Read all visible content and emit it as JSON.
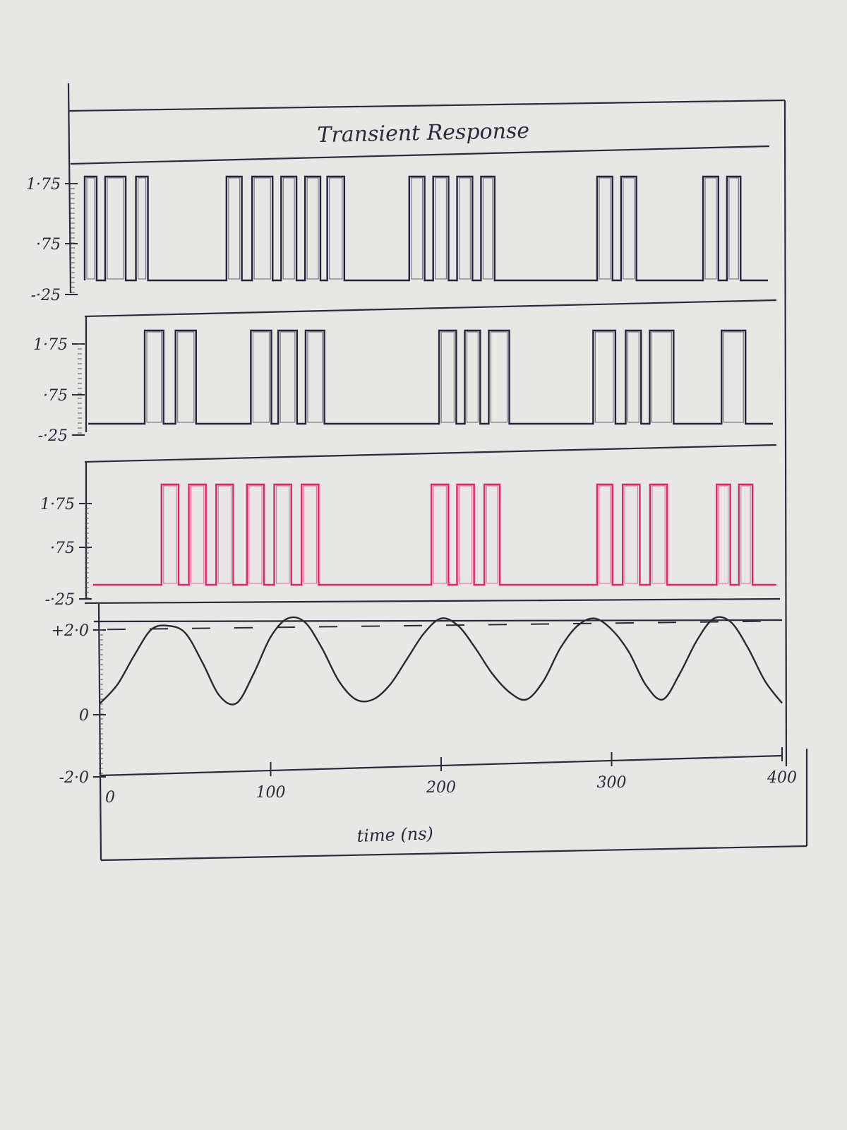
{
  "chart_data": [
    {
      "type": "line",
      "title": "Transient Response",
      "xlabel": "time (ns)",
      "xlim": [
        0,
        400
      ],
      "x_ticks": [
        "0",
        "100",
        "200",
        "300",
        "400"
      ],
      "panels": [
        {
          "kind": "digital",
          "color": "#23233a",
          "ylim": [
            -0.25,
            1.75
          ],
          "y_ticks": [
            "1·75",
            "·75",
            "-·25"
          ],
          "high": 1.75,
          "low": -0.25,
          "pulses_ns": [
            [
              0,
              7
            ],
            [
              12,
              24
            ],
            [
              30,
              37
            ],
            [
              83,
              92
            ],
            [
              98,
              110
            ],
            [
              115,
              124
            ],
            [
              129,
              138
            ],
            [
              142,
              152
            ],
            [
              190,
              199
            ],
            [
              204,
              213
            ],
            [
              218,
              227
            ],
            [
              232,
              240
            ],
            [
              300,
              309
            ],
            [
              314,
              323
            ],
            [
              362,
              371
            ],
            [
              376,
              384
            ]
          ]
        },
        {
          "kind": "digital",
          "color": "#23233a",
          "ylim": [
            -0.25,
            1.75
          ],
          "y_ticks": [
            "1·75",
            "·75",
            "-·25"
          ],
          "high": 1.75,
          "low": -0.25,
          "pulses_ns": [
            [
              33,
              44
            ],
            [
              51,
              63
            ],
            [
              95,
              107
            ],
            [
              111,
              122
            ],
            [
              127,
              138
            ],
            [
              205,
              215
            ],
            [
              220,
              229
            ],
            [
              234,
              246
            ],
            [
              295,
              308
            ],
            [
              314,
              323
            ],
            [
              328,
              342
            ],
            [
              370,
              384
            ]
          ]
        },
        {
          "kind": "digital",
          "color": "#e8206a",
          "ylim": [
            -0.25,
            1.75
          ],
          "y_ticks": [
            "1·75",
            "·75",
            "-·25"
          ],
          "high": 1.75,
          "low": -0.25,
          "pulses_ns": [
            [
              40,
              50
            ],
            [
              56,
              66
            ],
            [
              72,
              82
            ],
            [
              90,
              100
            ],
            [
              106,
              116
            ],
            [
              122,
              132
            ],
            [
              198,
              208
            ],
            [
              213,
              223
            ],
            [
              229,
              238
            ],
            [
              295,
              304
            ],
            [
              310,
              320
            ],
            [
              326,
              336
            ],
            [
              365,
              373
            ],
            [
              378,
              386
            ]
          ]
        },
        {
          "kind": "analog",
          "color": "#2a2a2a",
          "ylim": [
            -2.0,
            2.6
          ],
          "y_ticks": [
            "+2·0",
            "0",
            "-2·0"
          ],
          "threshold": 2.0,
          "x": [
            0,
            10,
            20,
            30,
            40,
            50,
            60,
            70,
            80,
            90,
            100,
            110,
            120,
            130,
            140,
            150,
            160,
            170,
            180,
            190,
            200,
            210,
            220,
            230,
            240,
            250,
            260,
            270,
            280,
            290,
            300,
            310,
            320,
            330,
            340,
            350,
            360,
            370,
            380,
            390,
            400
          ],
          "y": [
            0.0,
            0.5,
            1.3,
            2.0,
            2.1,
            1.9,
            1.1,
            0.2,
            0.0,
            0.8,
            1.8,
            2.3,
            2.2,
            1.5,
            0.6,
            0.1,
            0.1,
            0.5,
            1.2,
            1.9,
            2.3,
            2.1,
            1.5,
            0.8,
            0.3,
            0.1,
            0.6,
            1.5,
            2.1,
            2.3,
            2.0,
            1.4,
            0.5,
            0.1,
            0.8,
            1.7,
            2.3,
            2.2,
            1.5,
            0.6,
            0.0
          ]
        }
      ]
    }
  ]
}
